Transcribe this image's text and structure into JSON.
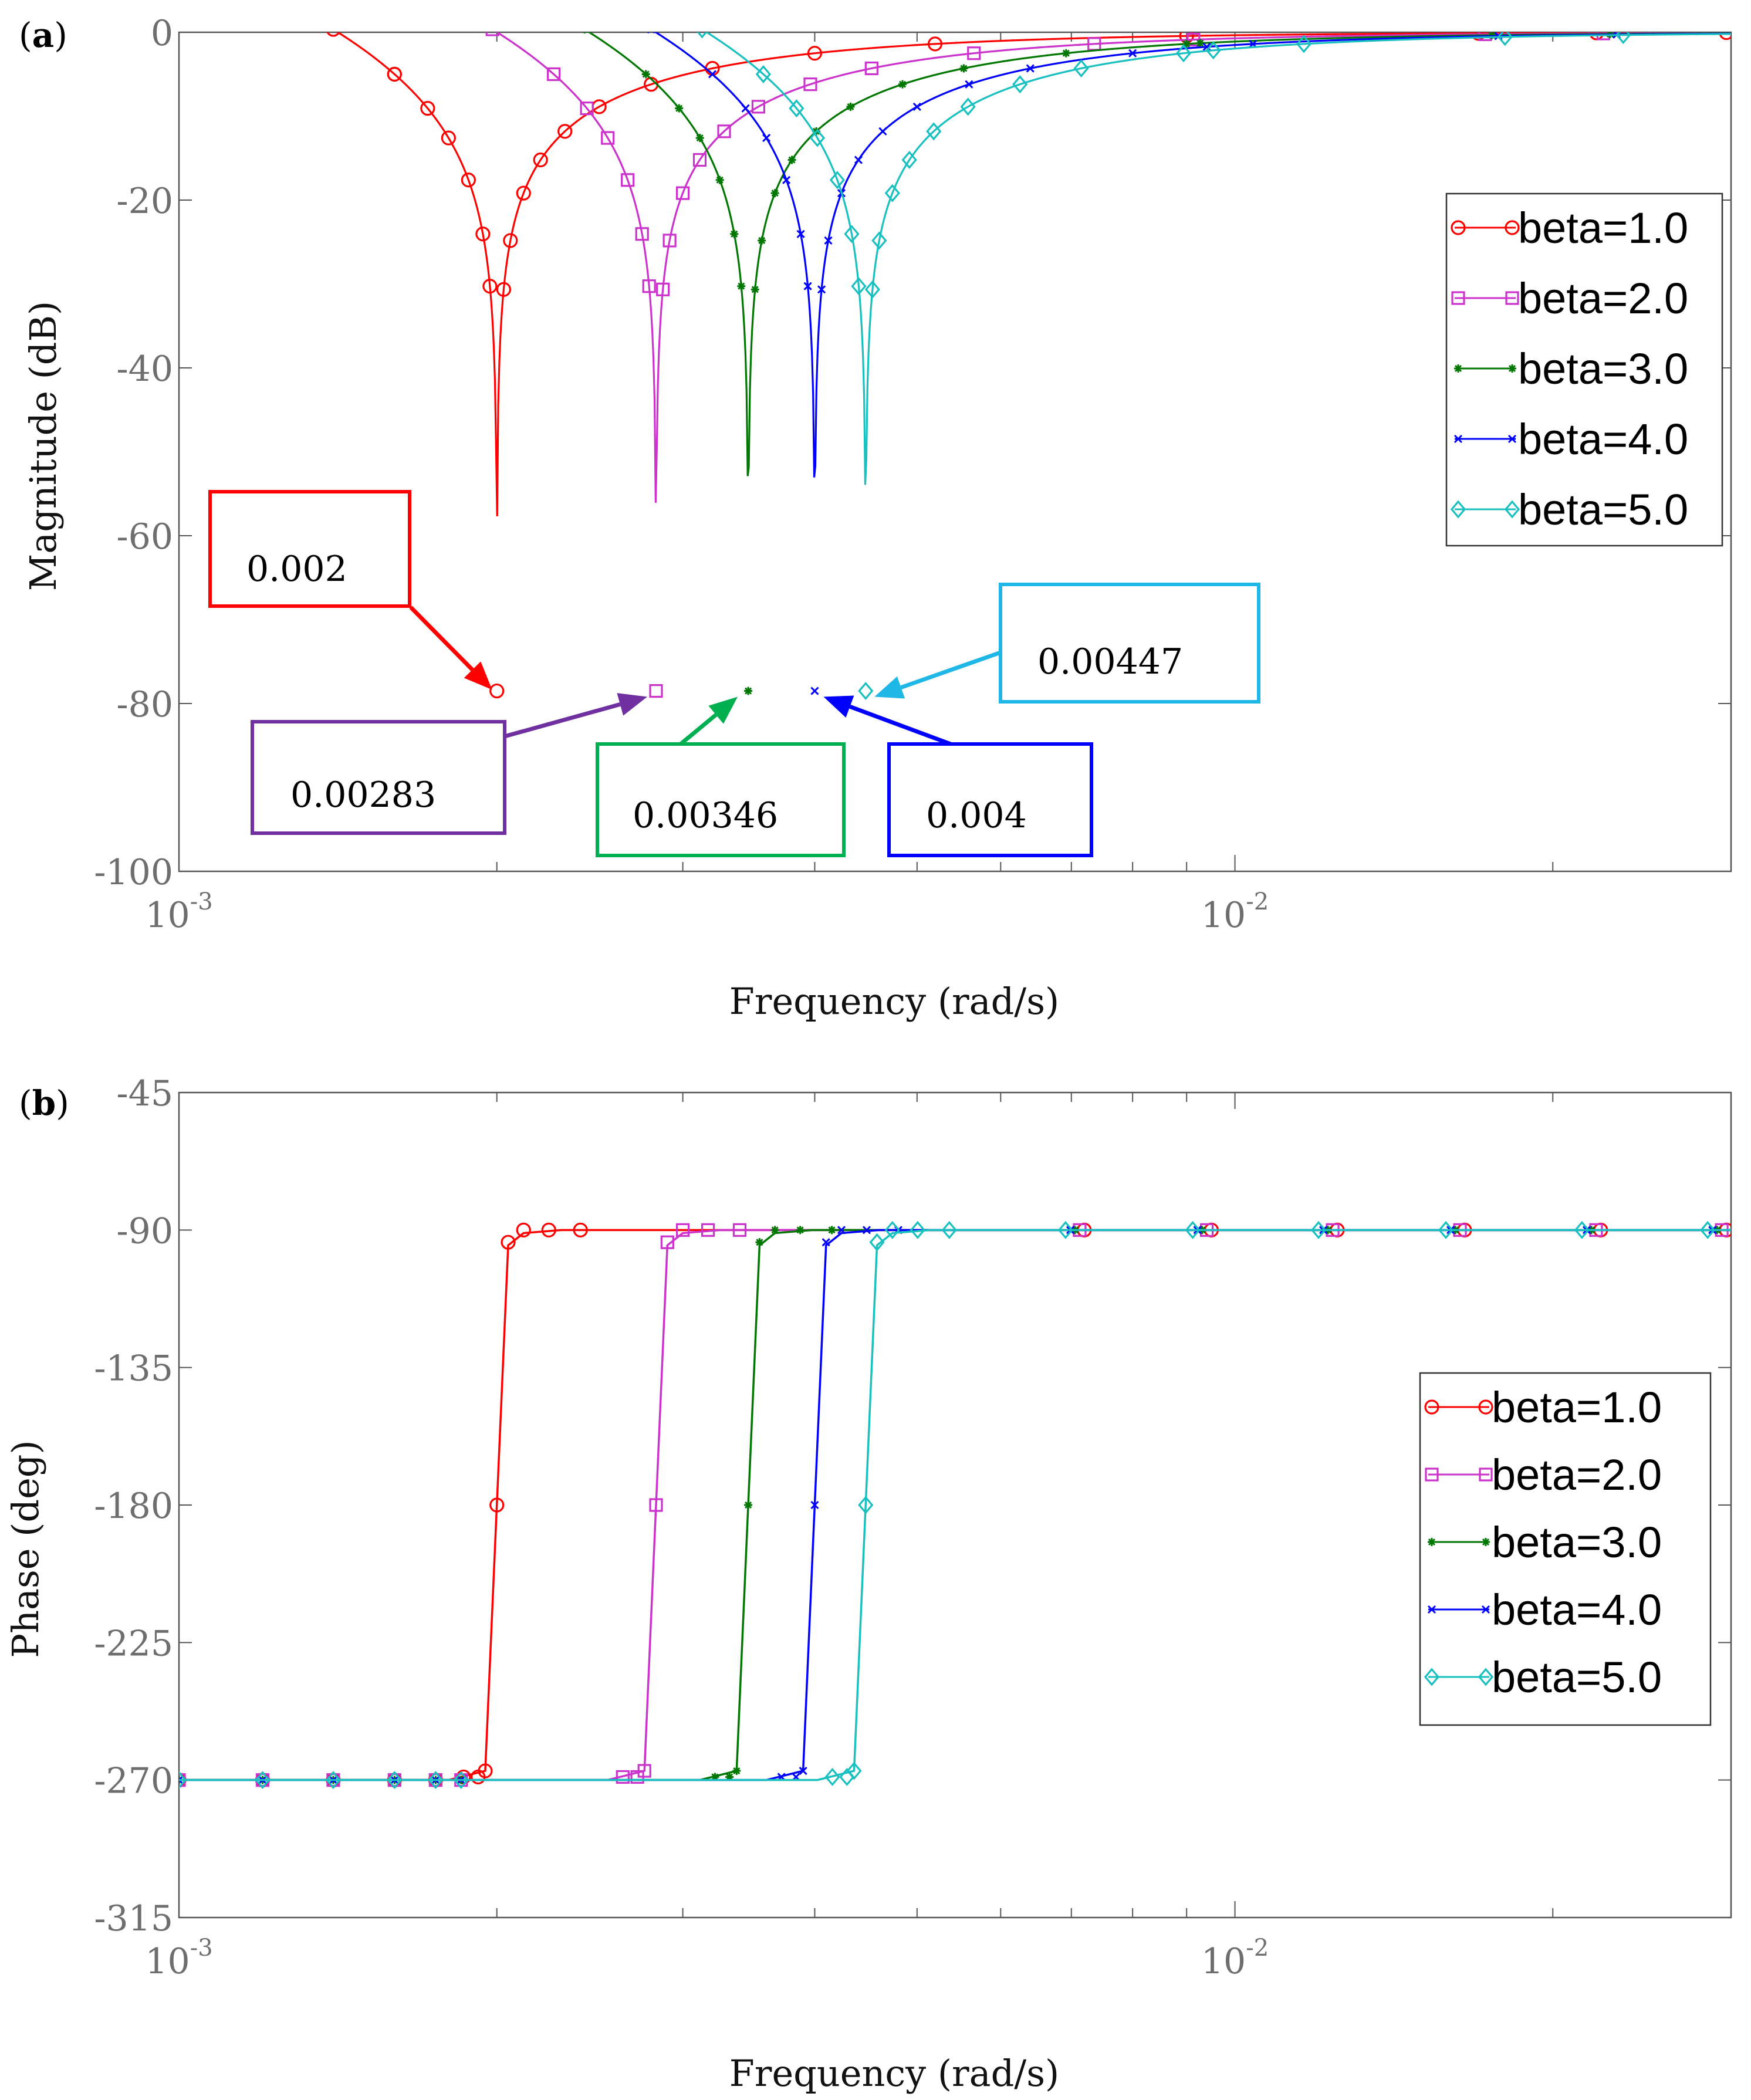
{
  "chart_data": [
    {
      "type": "line",
      "panel_label": "a",
      "xlabel": "Frequency (rad/s)",
      "ylabel": "Magnitude (dB)",
      "xscale": "log",
      "xlim": [
        0.001,
        0.0295
      ],
      "ylim": [
        -100,
        0
      ],
      "x_ticks": [
        {
          "base": "10",
          "exp": "-3"
        },
        {
          "base": "10",
          "exp": "-2"
        }
      ],
      "y_ticks": [
        "0",
        "-20",
        "-40",
        "-60",
        "-80",
        "-100"
      ],
      "legend_position": "right",
      "series": [
        {
          "name": "beta=1.0",
          "notch": 0.002,
          "color": "#ff0000",
          "marker": "circle"
        },
        {
          "name": "beta=2.0",
          "notch": 0.00283,
          "color": "#cc33cc",
          "marker": "square"
        },
        {
          "name": "beta=3.0",
          "notch": 0.00346,
          "color": "#007700",
          "marker": "star"
        },
        {
          "name": "beta=4.0",
          "notch": 0.004,
          "color": "#0000ff",
          "marker": "x"
        },
        {
          "name": "beta=5.0",
          "notch": 0.00447,
          "color": "#19c0c0",
          "marker": "diamond"
        }
      ],
      "annotations": [
        {
          "text": "0.002",
          "color": "#ff0000",
          "x": 0.002,
          "y": -78.5
        },
        {
          "text": "0.00283",
          "color": "#7030a0",
          "x": 0.00283,
          "y": -78.5
        },
        {
          "text": "0.00346",
          "color": "#00b050",
          "x": 0.00346,
          "y": -78.5
        },
        {
          "text": "0.004",
          "color": "#0000ff",
          "x": 0.004,
          "y": -78.5
        },
        {
          "text": "0.00447",
          "color": "#1fb7e6",
          "x": 0.00447,
          "y": -78.5
        }
      ]
    },
    {
      "type": "line",
      "panel_label": "b",
      "xlabel": "Frequency (rad/s)",
      "ylabel": "Phase (deg)",
      "xscale": "log",
      "xlim": [
        0.001,
        0.0295
      ],
      "ylim": [
        -315,
        -45
      ],
      "x_ticks": [
        {
          "base": "10",
          "exp": "-3"
        },
        {
          "base": "10",
          "exp": "-2"
        }
      ],
      "y_ticks": [
        "-45",
        "-90",
        "-135",
        "-180",
        "-225",
        "-270",
        "-315"
      ],
      "legend_position": "right",
      "phase_low": -270,
      "phase_high": -90,
      "series": [
        {
          "name": "beta=1.0",
          "notch": 0.002,
          "color": "#ff0000",
          "marker": "circle"
        },
        {
          "name": "beta=2.0",
          "notch": 0.00283,
          "color": "#cc33cc",
          "marker": "square"
        },
        {
          "name": "beta=3.0",
          "notch": 0.00346,
          "color": "#007700",
          "marker": "star"
        },
        {
          "name": "beta=4.0",
          "notch": 0.004,
          "color": "#0000ff",
          "marker": "x"
        },
        {
          "name": "beta=5.0",
          "notch": 0.00447,
          "color": "#19c0c0",
          "marker": "diamond"
        }
      ]
    }
  ]
}
